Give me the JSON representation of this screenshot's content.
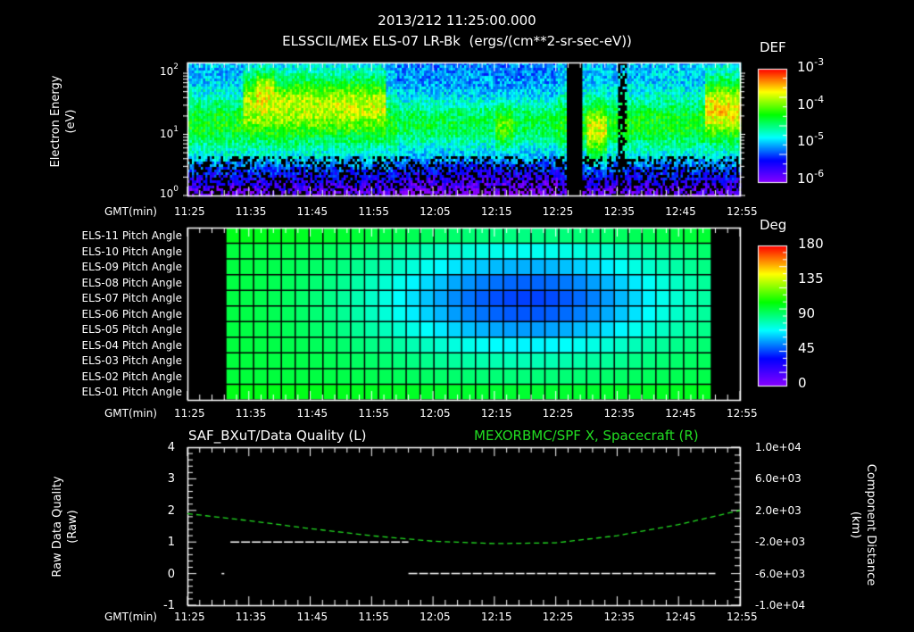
{
  "header": {
    "timestamp": "2013/212 11:25:00.000",
    "subtitle": "ELSSCIL/MEx ELS-07 LR-Bk  (ergs/(cm**2-sr-sec-eV))"
  },
  "time_axis": {
    "label": "GMT(min)",
    "ticks": [
      "11:25",
      "11:35",
      "11:45",
      "11:55",
      "12:05",
      "12:15",
      "12:25",
      "12:35",
      "12:45",
      "12:55"
    ]
  },
  "panel1": {
    "ylabel_line1": "Electron Energy",
    "ylabel_line2": "(eV)",
    "yticks": [
      {
        "base": "10",
        "exp": "2"
      },
      {
        "base": "10",
        "exp": "1"
      },
      {
        "base": "10",
        "exp": "0"
      }
    ],
    "colorbar": {
      "title": "DEF",
      "ticks": [
        {
          "base": "10",
          "exp": "-3"
        },
        {
          "base": "10",
          "exp": "-4"
        },
        {
          "base": "10",
          "exp": "-5"
        },
        {
          "base": "10",
          "exp": "-6"
        }
      ]
    }
  },
  "panel2": {
    "row_labels": [
      "ELS-11 Pitch Angle",
      "ELS-10 Pitch Angle",
      "ELS-09 Pitch Angle",
      "ELS-08 Pitch Angle",
      "ELS-07 Pitch Angle",
      "ELS-06 Pitch Angle",
      "ELS-05 Pitch Angle",
      "ELS-04 Pitch Angle",
      "ELS-03 Pitch Angle",
      "ELS-02 Pitch Angle",
      "ELS-01 Pitch Angle"
    ],
    "colorbar": {
      "title": "Deg",
      "ticks": [
        "180",
        "135",
        "90",
        "45",
        "0"
      ]
    }
  },
  "panel3": {
    "left_title": "SAF_BXuT/Data Quality (L)",
    "right_title": "MEXORBMC/SPF X, Spacecraft (R)",
    "right_title_color": "#22dd22",
    "ylabel_left_line1": "Raw Data Quality",
    "ylabel_left_line2": "(Raw)",
    "yticks_left": [
      "4",
      "3",
      "2",
      "1",
      "0",
      "-1"
    ],
    "ylabel_right_line1": "Component Distance",
    "ylabel_right_line2": "(km)",
    "yticks_right": [
      "1.0e+04",
      "6.0e+03",
      "2.0e+03",
      "-2.0e+03",
      "-6.0e+03",
      "-1.0e+04"
    ]
  },
  "chart_data": [
    {
      "type": "heatmap",
      "title": "ELSSCIL/MEx ELS-07 LR-Bk (ergs/(cm**2-sr-sec-eV))",
      "xlabel": "GMT(min)",
      "ylabel": "Electron Energy (eV)",
      "x_ticks": [
        "11:25",
        "11:35",
        "11:45",
        "11:55",
        "12:05",
        "12:15",
        "12:25",
        "12:35",
        "12:45",
        "12:55"
      ],
      "y_scale": "log",
      "ylim": [
        1,
        150
      ],
      "colorbar": {
        "label": "DEF",
        "scale": "log",
        "range": [
          1e-06,
          0.001
        ]
      },
      "features": [
        {
          "time": "11:34-11:56",
          "energy_eV": "20-100",
          "level": "~1e-4 to 3e-4 (yellow/red near 11:36-11:38)"
        },
        {
          "time": "12:16-12:19",
          "energy_eV": "5-30",
          "level": "~3e-5"
        },
        {
          "time": "12:27-12:29",
          "energy_eV": "all",
          "level": "data gap (black)"
        },
        {
          "time": "12:30-12:32",
          "energy_eV": "5-30",
          "level": "~5e-5 (green)"
        },
        {
          "time": "12:51-12:55",
          "energy_eV": "15-100",
          "level": "~2e-4 (yellow)"
        }
      ]
    },
    {
      "type": "heatmap",
      "title": "ELS Pitch Angle",
      "xlabel": "GMT(min)",
      "y_categories": [
        "ELS-11",
        "ELS-10",
        "ELS-09",
        "ELS-08",
        "ELS-07",
        "ELS-06",
        "ELS-05",
        "ELS-04",
        "ELS-03",
        "ELS-02",
        "ELS-01"
      ],
      "x_range_data": [
        "11:29",
        "12:51"
      ],
      "colorbar": {
        "label": "Deg",
        "range": [
          0,
          180
        ],
        "ticks": [
          0,
          45,
          90,
          135,
          180
        ]
      },
      "description": "Values ~100 deg at edges (ELS-11, ELS-01) decreasing to ~50 deg at ELS-07/ELS-06 near 12:20-12:25"
    },
    {
      "type": "line",
      "title": "SAF_BXuT/Data Quality (L) ; MEXORBMC/SPF X, Spacecraft (R)",
      "xlabel": "GMT(min)",
      "x_ticks": [
        "11:25",
        "11:35",
        "11:45",
        "11:55",
        "12:05",
        "12:15",
        "12:25",
        "12:35",
        "12:45",
        "12:55"
      ],
      "ylim_left": [
        -1,
        4
      ],
      "ylim_right": [
        -10000,
        10000
      ],
      "ylabel_left": "Raw Data Quality (Raw)",
      "ylabel_right": "Component Distance (km)",
      "series": [
        {
          "name": "Data Quality",
          "axis": "left",
          "color": "#ffffff",
          "x": [
            "11:29",
            "11:31",
            "11:32",
            "12:01",
            "12:02",
            "12:51"
          ],
          "y": [
            0,
            0,
            1,
            1,
            0,
            0
          ]
        },
        {
          "name": "SPF X, Spacecraft",
          "axis": "right",
          "color": "#22dd22",
          "x": [
            "11:25",
            "11:35",
            "11:45",
            "11:55",
            "12:05",
            "12:15",
            "12:25",
            "12:35",
            "12:45",
            "12:55"
          ],
          "y": [
            1600,
            700,
            -300,
            -1200,
            -1900,
            -2200,
            -2100,
            -1200,
            200,
            2000
          ]
        }
      ]
    }
  ]
}
